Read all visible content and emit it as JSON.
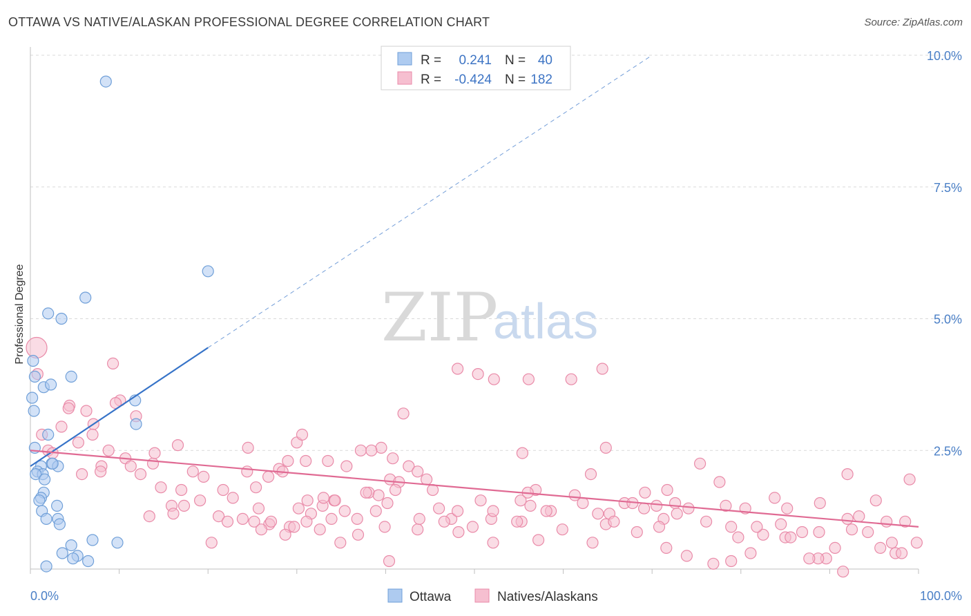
{
  "title": "OTTAWA VS NATIVE/ALASKAN PROFESSIONAL DEGREE CORRELATION CHART",
  "source": "Source: ZipAtlas.com",
  "watermark": {
    "zip": "ZIP",
    "atlas": "atlas"
  },
  "colors": {
    "ottawa_fill": "#aecbf0",
    "ottawa_stroke": "#6f9fd8",
    "ottawa_line": "#3673c8",
    "native_fill": "#f6bfd0",
    "native_stroke": "#e98aa8",
    "native_line": "#e06a93",
    "grid": "#d9d9d9",
    "tick_label": "#4a7fc6"
  },
  "legend": {
    "r_label": "R =",
    "n_label": "N =",
    "ottawa_r": "0.241",
    "ottawa_n": "40",
    "native_r": "-0.424",
    "native_n": "182"
  },
  "bottom_legend": [
    "Ottawa",
    "Natives/Alaskans"
  ],
  "chart_data": {
    "type": "scatter",
    "ylabel": "Professional Degree",
    "xlabel": "",
    "xlim": [
      0,
      100
    ],
    "ylim": [
      0,
      10.5
    ],
    "x_tick_labels": [
      "0.0%",
      "100.0%"
    ],
    "y_ticks": [
      2.5,
      5.0,
      7.5,
      10.0
    ],
    "y_tick_labels": [
      "2.5%",
      "5.0%",
      "7.5%",
      "10.0%"
    ],
    "grid": "horizontal dashed",
    "legend_position": "top-center",
    "series": [
      {
        "name": "Ottawa",
        "trend": {
          "x": [
            0,
            20
          ],
          "y": [
            2.2,
            4.45
          ],
          "extended_to": [
            70,
            10.0
          ]
        },
        "points": [
          [
            8.5,
            9.5
          ],
          [
            20,
            5.9
          ],
          [
            6.2,
            5.4
          ],
          [
            2,
            5.1
          ],
          [
            3.5,
            5.0
          ],
          [
            0.3,
            4.2
          ],
          [
            0.5,
            3.9
          ],
          [
            4.6,
            3.9
          ],
          [
            1.5,
            3.7
          ],
          [
            2.3,
            3.75
          ],
          [
            0.2,
            3.5
          ],
          [
            11.8,
            3.45
          ],
          [
            0.4,
            3.25
          ],
          [
            11.9,
            3.0
          ],
          [
            2,
            2.8
          ],
          [
            0.5,
            2.55
          ],
          [
            2.4,
            2.25
          ],
          [
            1.2,
            2.2
          ],
          [
            3.1,
            2.2
          ],
          [
            0.8,
            2.1
          ],
          [
            1.4,
            2.05
          ],
          [
            0.6,
            2.05
          ],
          [
            1.6,
            1.95
          ],
          [
            1.5,
            1.7
          ],
          [
            1.2,
            1.6
          ],
          [
            1,
            1.55
          ],
          [
            3,
            1.45
          ],
          [
            1.3,
            1.35
          ],
          [
            3.1,
            1.2
          ],
          [
            1.8,
            1.2
          ],
          [
            3.3,
            1.1
          ],
          [
            7,
            0.8
          ],
          [
            4.6,
            0.7
          ],
          [
            9.8,
            0.75
          ],
          [
            3.6,
            0.55
          ],
          [
            5.3,
            0.5
          ],
          [
            4.8,
            0.45
          ],
          [
            6.5,
            0.4
          ],
          [
            1.8,
            0.3
          ],
          [
            2.5,
            2.25
          ]
        ]
      },
      {
        "name": "Natives/Alaskans",
        "trend": {
          "x": [
            0,
            100
          ],
          "y": [
            2.5,
            1.05
          ]
        },
        "points": [
          [
            0.7,
            4.45
          ],
          [
            0.8,
            3.95
          ],
          [
            1.3,
            2.8
          ],
          [
            2,
            2.5
          ],
          [
            2.5,
            2.45
          ],
          [
            9.3,
            4.15
          ],
          [
            3.5,
            2.95
          ],
          [
            4.4,
            3.35
          ],
          [
            4.3,
            3.3
          ],
          [
            6.3,
            3.25
          ],
          [
            7.1,
            3.0
          ],
          [
            10.1,
            3.45
          ],
          [
            9.6,
            3.4
          ],
          [
            11.9,
            3.15
          ],
          [
            7.0,
            2.8
          ],
          [
            5.4,
            2.65
          ],
          [
            8.8,
            2.5
          ],
          [
            10.7,
            2.35
          ],
          [
            11.3,
            2.2
          ],
          [
            13.8,
            2.25
          ],
          [
            14,
            2.45
          ],
          [
            16.6,
            2.6
          ],
          [
            18.3,
            2.1
          ],
          [
            8.0,
            2.2
          ],
          [
            5.8,
            2.05
          ],
          [
            7.9,
            2.1
          ],
          [
            12.4,
            2.05
          ],
          [
            19.5,
            2.0
          ],
          [
            14.7,
            1.8
          ],
          [
            17,
            1.75
          ],
          [
            21.7,
            1.75
          ],
          [
            22.8,
            1.6
          ],
          [
            19.1,
            1.55
          ],
          [
            15.9,
            1.45
          ],
          [
            17.3,
            1.45
          ],
          [
            13.4,
            1.25
          ],
          [
            16.1,
            1.3
          ],
          [
            21.2,
            1.25
          ],
          [
            23.9,
            1.2
          ],
          [
            25.2,
            1.15
          ],
          [
            22.2,
            1.15
          ],
          [
            26.9,
            1.1
          ],
          [
            27.1,
            1.15
          ],
          [
            29.2,
            1.05
          ],
          [
            28.7,
            0.9
          ],
          [
            26.0,
            1.0
          ],
          [
            20.4,
            0.75
          ],
          [
            29.7,
            1.05
          ],
          [
            31.6,
            1.3
          ],
          [
            32.6,
            1.0
          ],
          [
            31.1,
            1.15
          ],
          [
            25.7,
            1.4
          ],
          [
            30.2,
            1.4
          ],
          [
            24.5,
            2.55
          ],
          [
            24.4,
            2.1
          ],
          [
            26.8,
            2.0
          ],
          [
            28.0,
            2.15
          ],
          [
            29.0,
            2.3
          ],
          [
            28.4,
            2.1
          ],
          [
            25.4,
            1.8
          ],
          [
            30,
            2.65
          ],
          [
            30.6,
            2.8
          ],
          [
            31.0,
            2.3
          ],
          [
            33.5,
            2.3
          ],
          [
            31.2,
            1.55
          ],
          [
            32.9,
            1.45
          ],
          [
            33.0,
            1.6
          ],
          [
            34.2,
            1.55
          ],
          [
            35.6,
            2.2
          ],
          [
            37.2,
            2.5
          ],
          [
            38.1,
            1.7
          ],
          [
            40.5,
            1.95
          ],
          [
            39.2,
            1.65
          ],
          [
            37.8,
            1.7
          ],
          [
            36.8,
            1.2
          ],
          [
            35.4,
            1.35
          ],
          [
            34.3,
            1.55
          ],
          [
            33.9,
            1.2
          ],
          [
            36.9,
            0.9
          ],
          [
            34.9,
            0.75
          ],
          [
            38.9,
            1.35
          ],
          [
            40.2,
            1.5
          ],
          [
            41.5,
            1.9
          ],
          [
            41.1,
            1.75
          ],
          [
            39.5,
            2.55
          ],
          [
            38.4,
            2.5
          ],
          [
            42.0,
            3.2
          ],
          [
            40.8,
            2.35
          ],
          [
            42.6,
            2.2
          ],
          [
            43.6,
            2.1
          ],
          [
            44.6,
            1.95
          ],
          [
            45.3,
            1.75
          ],
          [
            43.6,
            1.0
          ],
          [
            39.9,
            1.05
          ],
          [
            40.4,
            0.4
          ],
          [
            43.8,
            1.2
          ],
          [
            46.0,
            1.4
          ],
          [
            48.2,
            0.95
          ],
          [
            47.4,
            1.2
          ],
          [
            48.1,
            1.35
          ],
          [
            46.6,
            1.15
          ],
          [
            49.8,
            1.05
          ],
          [
            50.7,
            1.55
          ],
          [
            51.9,
            1.2
          ],
          [
            52.1,
            1.35
          ],
          [
            52.1,
            0.75
          ],
          [
            55.3,
            1.15
          ],
          [
            56.3,
            1.45
          ],
          [
            57.2,
            0.8
          ],
          [
            54.8,
            1.15
          ],
          [
            55.4,
            2.45
          ],
          [
            55.2,
            1.55
          ],
          [
            58.6,
            1.35
          ],
          [
            59.9,
            1.0
          ],
          [
            56.9,
            1.75
          ],
          [
            56.0,
            1.7
          ],
          [
            58.1,
            1.35
          ],
          [
            61.3,
            1.65
          ],
          [
            63.1,
            2.05
          ],
          [
            62.2,
            1.5
          ],
          [
            63.9,
            1.3
          ],
          [
            64.8,
            1.1
          ],
          [
            65.2,
            1.3
          ],
          [
            65.7,
            1.15
          ],
          [
            63.3,
            0.75
          ],
          [
            64.8,
            2.55
          ],
          [
            66.9,
            1.5
          ],
          [
            67.8,
            1.5
          ],
          [
            69.2,
            1.7
          ],
          [
            70.5,
            1.45
          ],
          [
            71.7,
            1.75
          ],
          [
            72.6,
            1.5
          ],
          [
            72.8,
            1.3
          ],
          [
            74.1,
            1.4
          ],
          [
            71.3,
            1.2
          ],
          [
            70.8,
            1.05
          ],
          [
            69.1,
            1.4
          ],
          [
            68.3,
            0.95
          ],
          [
            71.6,
            0.65
          ],
          [
            73.9,
            0.5
          ],
          [
            75.4,
            2.25
          ],
          [
            76.1,
            1.15
          ],
          [
            77.6,
            1.9
          ],
          [
            78.3,
            1.45
          ],
          [
            78.9,
            1.05
          ],
          [
            79.7,
            0.85
          ],
          [
            80.5,
            1.4
          ],
          [
            82.5,
            0.9
          ],
          [
            81.1,
            0.55
          ],
          [
            81.8,
            1.05
          ],
          [
            83.8,
            1.6
          ],
          [
            84.5,
            1.1
          ],
          [
            85.2,
            1.4
          ],
          [
            85.0,
            0.85
          ],
          [
            86.9,
            0.95
          ],
          [
            85.6,
            0.85
          ],
          [
            88.9,
            1.5
          ],
          [
            88.8,
            0.95
          ],
          [
            89.6,
            0.45
          ],
          [
            90.6,
            0.65
          ],
          [
            91.5,
            0.2
          ],
          [
            92.0,
            1.2
          ],
          [
            92.5,
            1.0
          ],
          [
            93.3,
            1.25
          ],
          [
            94.3,
            0.95
          ],
          [
            95.2,
            1.55
          ],
          [
            95.7,
            0.65
          ],
          [
            96.4,
            1.15
          ],
          [
            97.0,
            0.75
          ],
          [
            97.4,
            0.55
          ],
          [
            98.1,
            0.55
          ],
          [
            98.5,
            1.15
          ],
          [
            99.0,
            1.95
          ],
          [
            99.8,
            0.75
          ],
          [
            92.0,
            2.05
          ],
          [
            88.7,
            0.45
          ],
          [
            87.7,
            0.45
          ],
          [
            76.9,
            0.35
          ],
          [
            78.9,
            0.4
          ],
          [
            48.1,
            4.05
          ],
          [
            50.4,
            3.95
          ],
          [
            52.2,
            3.85
          ],
          [
            56.1,
            3.85
          ],
          [
            60.9,
            3.85
          ],
          [
            64.4,
            4.05
          ]
        ]
      }
    ]
  }
}
